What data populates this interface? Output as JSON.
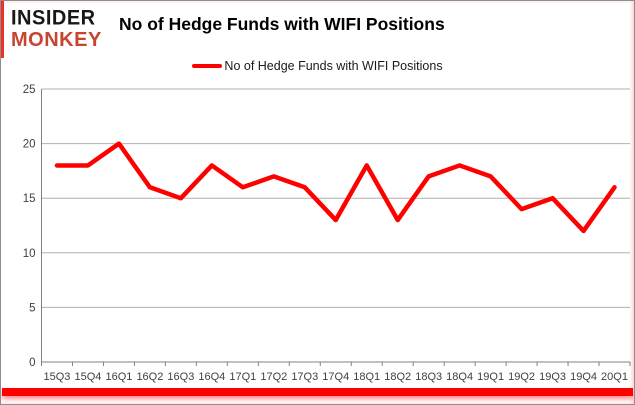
{
  "logo": {
    "line1": "INSIDER",
    "line2": "MONKEY"
  },
  "title": "No of Hedge Funds with WIFI Positions",
  "legend": {
    "label": "No of Hedge Funds with WIFI Positions",
    "swatch_color": "#ff0000"
  },
  "colors": {
    "line": "#ff0000",
    "gridline": "#b0b0b0",
    "axis": "#808080",
    "tick_label": "#404040",
    "logo_red": "#c54531",
    "accent_red": "#ee3124",
    "bottom_bar": "#fe0000",
    "frame_border": "#8e8e8e"
  },
  "chart_data": {
    "type": "line",
    "title": "No of Hedge Funds with WIFI Positions",
    "categories": [
      "15Q3",
      "15Q4",
      "16Q1",
      "16Q2",
      "16Q3",
      "16Q4",
      "17Q1",
      "17Q2",
      "17Q3",
      "17Q4",
      "18Q1",
      "18Q2",
      "18Q3",
      "18Q4",
      "19Q1",
      "19Q2",
      "19Q3",
      "19Q4",
      "20Q1"
    ],
    "series": [
      {
        "name": "No of Hedge Funds with WIFI Positions",
        "color": "#ff0000",
        "values": [
          18,
          18,
          20,
          16,
          15,
          18,
          16,
          17,
          16,
          13,
          18,
          13,
          17,
          18,
          17,
          14,
          15,
          12,
          16
        ]
      }
    ],
    "xlabel": "",
    "ylabel": "",
    "ylim": [
      0,
      25
    ],
    "yticks": [
      0,
      5,
      10,
      15,
      20,
      25
    ],
    "grid": true,
    "legend_position": "top"
  }
}
